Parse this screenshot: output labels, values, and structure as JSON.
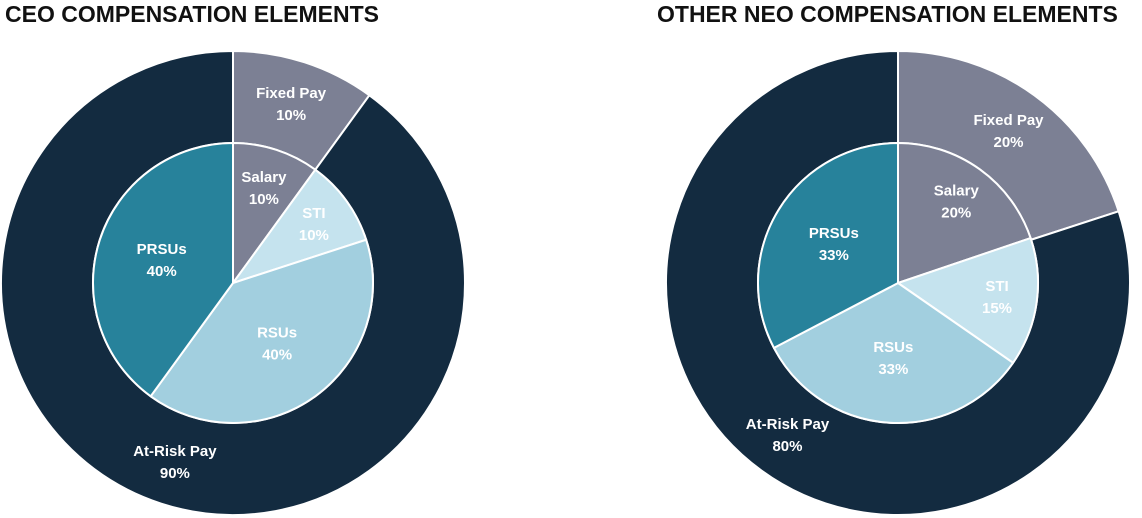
{
  "chart_data": [
    {
      "type": "pie",
      "title": "CEO COMPENSATION ELEMENTS",
      "rings": [
        {
          "categories": [
            "Fixed Pay",
            "At-Risk Pay"
          ],
          "values": [
            10,
            90
          ],
          "value_labels": [
            "10%",
            "90%"
          ],
          "colors": [
            "#7c8094",
            "#132b40"
          ]
        },
        {
          "categories": [
            "Salary",
            "STI",
            "RSUs",
            "PRSUs"
          ],
          "values": [
            10,
            10,
            40,
            40
          ],
          "value_labels": [
            "10%",
            "10%",
            "40%",
            "40%"
          ],
          "colors": [
            "#7c8094",
            "#c5e3ee",
            "#a2cfdf",
            "#27829b"
          ]
        }
      ]
    },
    {
      "type": "pie",
      "title": "OTHER NEO COMPENSATION ELEMENTS",
      "rings": [
        {
          "categories": [
            "Fixed Pay",
            "At-Risk Pay"
          ],
          "values": [
            20,
            80
          ],
          "value_labels": [
            "20%",
            "80%"
          ],
          "colors": [
            "#7c8094",
            "#132b40"
          ]
        },
        {
          "categories": [
            "Salary",
            "STI",
            "RSUs",
            "PRSUs"
          ],
          "values": [
            20,
            15,
            33,
            33
          ],
          "value_labels": [
            "20%",
            "15%",
            "33%",
            "33%"
          ],
          "colors": [
            "#7c8094",
            "#c5e3ee",
            "#a2cfdf",
            "#27829b"
          ]
        }
      ]
    }
  ]
}
